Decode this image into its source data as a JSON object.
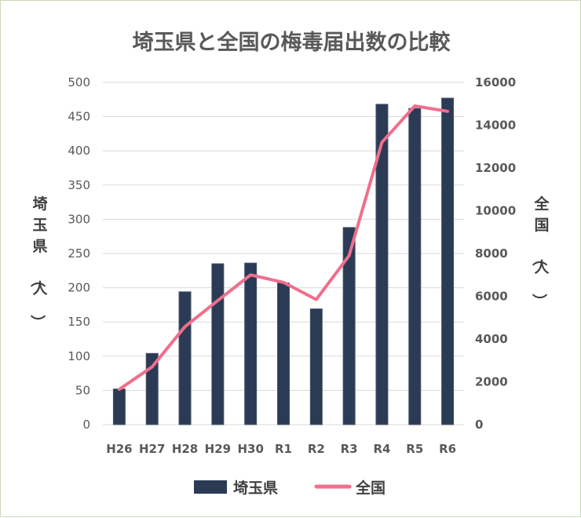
{
  "chart_data": {
    "type": "bar",
    "title": "埼玉県と全国の梅毒届出数の比較",
    "categories": [
      "H26",
      "H27",
      "H28",
      "H29",
      "H30",
      "R1",
      "R2",
      "R3",
      "R4",
      "R5",
      "R6"
    ],
    "series": [
      {
        "name": "埼玉県",
        "type": "bar",
        "axis": "left",
        "color": "#2b3a55",
        "values": [
          52,
          104,
          194,
          235,
          236,
          207,
          169,
          288,
          468,
          462,
          477
        ]
      },
      {
        "name": "全国",
        "type": "line",
        "axis": "right",
        "color": "#ef6f8c",
        "values": [
          1650,
          2700,
          4580,
          5800,
          7000,
          6650,
          5850,
          7900,
          13200,
          14900,
          14650
        ]
      }
    ],
    "ylabel": "埼玉県（人）",
    "y2label": "全国（人）",
    "ylim": [
      0,
      500
    ],
    "y2lim": [
      0,
      16000
    ],
    "yticks": [
      "500",
      "450",
      "400",
      "350",
      "300",
      "250",
      "200",
      "150",
      "100",
      "50",
      "0"
    ],
    "y2ticks": [
      "16000",
      "14000",
      "12000",
      "10000",
      "8000",
      "6000",
      "4000",
      "2000",
      "0"
    ],
    "grid": true,
    "legend": "bottom"
  }
}
